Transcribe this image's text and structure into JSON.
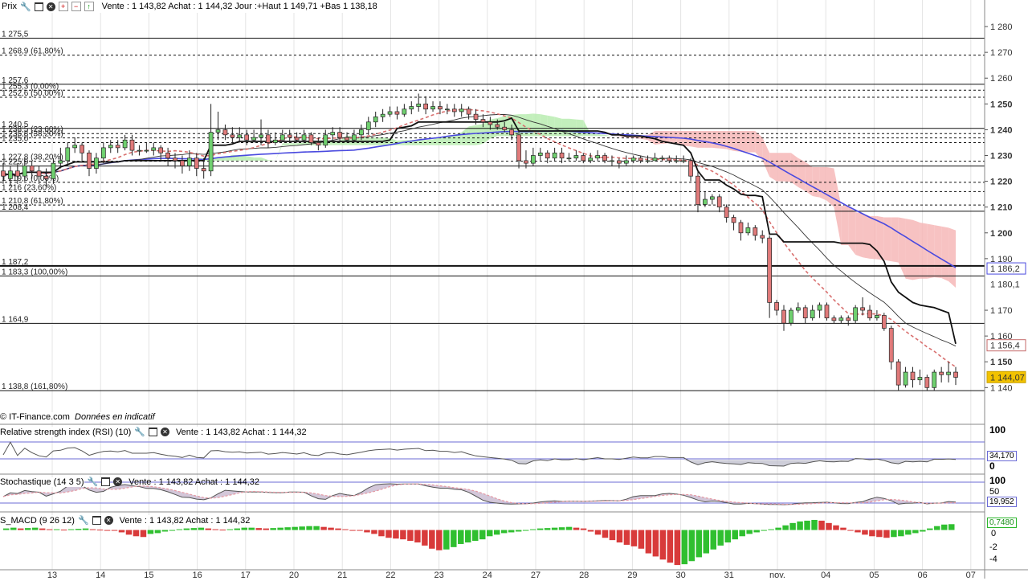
{
  "header": {
    "label": "Prix",
    "quote": "Vente : 1 143,82 Achat : 1 144,32 Jour :+Haut 1 149,71 +Bas 1 138,18"
  },
  "credit": {
    "source": "© IT-Finance.com",
    "note": "Données en indicatif"
  },
  "icons": [
    "wrench-icon",
    "window-icon",
    "close-icon",
    "add-icon",
    "remove-icon",
    "up-icon"
  ],
  "chart_data": {
    "type": "candlestick",
    "price_axis": {
      "ylim": [
        1132,
        1285
      ],
      "ticks": [
        "1 280",
        "1 270",
        "1 260",
        "1 250",
        "1 240",
        "1 230",
        "1 220",
        "1 210",
        "1 200",
        "1 190",
        "1 180,1",
        "1 170",
        "1 160",
        "1 150",
        "1 140"
      ],
      "tick_values": [
        1280,
        1270,
        1260,
        1250,
        1240,
        1230,
        1220,
        1210,
        1200,
        1190,
        1180.1,
        1170,
        1160,
        1150,
        1140
      ],
      "bold_ticks": [
        "1 250",
        "1 240",
        "1 230",
        "1 220",
        "1 210",
        "1 200",
        "1 150"
      ]
    },
    "x_axis": {
      "ticks": [
        "13",
        "14",
        "15",
        "16",
        "17",
        "20",
        "21",
        "22",
        "23",
        "24",
        "27",
        "28",
        "29",
        "30",
        "31",
        "nov.",
        "04",
        "05",
        "06",
        "07"
      ]
    },
    "levels": [
      {
        "label": "1 275,5",
        "value": 1275.5,
        "style": "solid"
      },
      {
        "label": "1 268,9 (61,80%)",
        "value": 1268.9,
        "style": "dashed"
      },
      {
        "label": "1 257,6",
        "value": 1257.6,
        "style": "solid"
      },
      {
        "label": "1 255,3 (0,00%)",
        "value": 1255.3,
        "style": "dashed"
      },
      {
        "label": "1 252,6 (50,00%)",
        "value": 1252.6,
        "style": "dashed"
      },
      {
        "label": "1 240,5",
        "value": 1240.5,
        "style": "solid"
      },
      {
        "label": "1 238,5 (23,60%)",
        "value": 1238.5,
        "style": "dashed"
      },
      {
        "label": "1 236,8 (38,20%)",
        "value": 1236.8,
        "style": "dashed"
      },
      {
        "label": "1 235,0",
        "value": 1235.0,
        "style": "dashed"
      },
      {
        "label": "1 227,8 (38,20%)",
        "value": 1227.8,
        "style": "dashed"
      },
      {
        "label": "1 225,9",
        "value": 1225.9,
        "style": "solid"
      },
      {
        "label": "1 219,6 (0,00%)",
        "value": 1219.6,
        "style": "dashed"
      },
      {
        "label": "1 216 (23,60%)",
        "value": 1216.0,
        "style": "dashed"
      },
      {
        "label": "1 210,8 (61,80%)",
        "value": 1210.8,
        "style": "dashed"
      },
      {
        "label": "1 208,4",
        "value": 1208.4,
        "style": "solid"
      },
      {
        "label": "1 187,2",
        "value": 1187.2,
        "style": "solid-bold"
      },
      {
        "label": "1 183,3 (100,00%)",
        "value": 1183.3,
        "style": "solid"
      },
      {
        "label": "1 164,9",
        "value": 1164.9,
        "style": "solid"
      },
      {
        "label": "1 138,8 (161,80%)",
        "value": 1138.8,
        "style": "solid"
      }
    ],
    "price_tags": [
      {
        "label": "1 186,2",
        "value": 1186.2,
        "bg": "#ffffff",
        "border": "#4a4adf"
      },
      {
        "label": "1 156,4",
        "value": 1156.4,
        "bg": "#ffffff",
        "border": "#c46a6a"
      },
      {
        "label": "1 144,07",
        "value": 1144.07,
        "bg": "#f2c200",
        "border": "#c9a000"
      }
    ],
    "candles": [
      [
        1224,
        1222,
        1227,
        1219
      ],
      [
        1221,
        1224,
        1226,
        1218
      ],
      [
        1224,
        1222,
        1227,
        1219
      ],
      [
        1222,
        1226,
        1229,
        1220
      ],
      [
        1226,
        1224,
        1228,
        1221
      ],
      [
        1224,
        1222,
        1226,
        1219
      ],
      [
        1222,
        1221,
        1225,
        1218
      ],
      [
        1221,
        1227,
        1229,
        1219
      ],
      [
        1227,
        1228,
        1233,
        1225
      ],
      [
        1228,
        1233,
        1235,
        1226
      ],
      [
        1233,
        1234,
        1237,
        1231
      ],
      [
        1234,
        1231,
        1235,
        1228
      ],
      [
        1231,
        1225,
        1232,
        1222
      ],
      [
        1225,
        1229,
        1231,
        1223
      ],
      [
        1229,
        1233,
        1235,
        1227
      ],
      [
        1233,
        1234,
        1236,
        1231
      ],
      [
        1234,
        1233,
        1236,
        1231
      ],
      [
        1233,
        1236,
        1238,
        1232
      ],
      [
        1236,
        1232,
        1238,
        1230
      ],
      [
        1232,
        1232,
        1234,
        1230
      ],
      [
        1232,
        1232,
        1235,
        1231
      ],
      [
        1232,
        1233,
        1235,
        1230
      ],
      [
        1233,
        1231,
        1234,
        1228
      ],
      [
        1231,
        1229,
        1233,
        1226
      ],
      [
        1229,
        1228,
        1231,
        1225
      ],
      [
        1228,
        1226,
        1230,
        1223
      ],
      [
        1226,
        1229,
        1232,
        1224
      ],
      [
        1229,
        1225,
        1231,
        1222
      ],
      [
        1225,
        1224,
        1229,
        1221
      ],
      [
        1224,
        1239,
        1250,
        1222
      ],
      [
        1239,
        1240,
        1247,
        1236
      ],
      [
        1240,
        1238,
        1242,
        1236
      ],
      [
        1238,
        1237,
        1241,
        1235
      ],
      [
        1237,
        1238,
        1241,
        1235
      ],
      [
        1238,
        1236,
        1240,
        1234
      ],
      [
        1236,
        1237,
        1240,
        1235
      ],
      [
        1237,
        1238,
        1244,
        1234
      ],
      [
        1238,
        1235,
        1240,
        1233
      ],
      [
        1235,
        1236,
        1239,
        1234
      ],
      [
        1236,
        1238,
        1240,
        1236
      ],
      [
        1238,
        1237,
        1240,
        1235
      ],
      [
        1237,
        1236,
        1239,
        1235
      ],
      [
        1236,
        1238,
        1240,
        1235
      ],
      [
        1238,
        1235,
        1239,
        1234
      ],
      [
        1235,
        1234,
        1237,
        1232
      ],
      [
        1234,
        1238,
        1240,
        1233
      ],
      [
        1238,
        1239,
        1241,
        1236
      ],
      [
        1239,
        1237,
        1241,
        1235
      ],
      [
        1237,
        1236,
        1239,
        1235
      ],
      [
        1236,
        1238,
        1240,
        1235
      ],
      [
        1238,
        1240,
        1242,
        1236
      ],
      [
        1240,
        1243,
        1245,
        1238
      ],
      [
        1243,
        1245,
        1247,
        1241
      ],
      [
        1245,
        1246,
        1248,
        1243
      ],
      [
        1246,
        1247,
        1249,
        1245
      ],
      [
        1247,
        1246,
        1249,
        1244
      ],
      [
        1246,
        1248,
        1250,
        1245
      ],
      [
        1248,
        1249,
        1251,
        1246
      ],
      [
        1249,
        1250,
        1254,
        1247
      ],
      [
        1250,
        1248,
        1253,
        1246
      ],
      [
        1248,
        1249,
        1251,
        1247
      ],
      [
        1249,
        1248,
        1251,
        1246
      ],
      [
        1248,
        1248,
        1250,
        1246
      ],
      [
        1248,
        1247,
        1250,
        1245
      ],
      [
        1247,
        1248,
        1250,
        1245
      ],
      [
        1248,
        1246,
        1249,
        1244
      ],
      [
        1246,
        1244,
        1248,
        1242
      ],
      [
        1244,
        1243,
        1246,
        1241
      ],
      [
        1243,
        1242,
        1245,
        1240
      ],
      [
        1242,
        1241,
        1244,
        1240
      ],
      [
        1241,
        1240,
        1243,
        1239
      ],
      [
        1240,
        1238,
        1242,
        1236
      ],
      [
        1238,
        1228,
        1240,
        1225
      ],
      [
        1228,
        1227,
        1232,
        1225
      ],
      [
        1227,
        1230,
        1233,
        1226
      ],
      [
        1230,
        1231,
        1233,
        1228
      ],
      [
        1231,
        1229,
        1232,
        1227
      ],
      [
        1229,
        1231,
        1233,
        1228
      ],
      [
        1231,
        1229,
        1233,
        1227
      ],
      [
        1229,
        1229,
        1231,
        1228
      ],
      [
        1229,
        1230,
        1232,
        1228
      ],
      [
        1230,
        1228,
        1231,
        1227
      ],
      [
        1228,
        1229,
        1231,
        1227
      ],
      [
        1229,
        1230,
        1232,
        1228
      ],
      [
        1230,
        1228,
        1231,
        1227
      ],
      [
        1228,
        1228,
        1230,
        1226
      ],
      [
        1228,
        1227,
        1229,
        1225
      ],
      [
        1227,
        1228,
        1230,
        1226
      ],
      [
        1228,
        1229,
        1230,
        1227
      ],
      [
        1229,
        1228,
        1230,
        1227
      ],
      [
        1228,
        1228,
        1230,
        1227
      ],
      [
        1228,
        1229,
        1231,
        1228
      ],
      [
        1229,
        1229,
        1230,
        1228
      ],
      [
        1229,
        1228,
        1230,
        1227
      ],
      [
        1228,
        1228,
        1230,
        1227
      ],
      [
        1228,
        1228,
        1230,
        1227
      ],
      [
        1228,
        1222,
        1229,
        1220
      ],
      [
        1222,
        1211,
        1224,
        1208
      ],
      [
        1211,
        1213,
        1216,
        1210
      ],
      [
        1213,
        1214,
        1215,
        1211
      ],
      [
        1214,
        1210,
        1215,
        1208
      ],
      [
        1210,
        1206,
        1211,
        1204
      ],
      [
        1206,
        1204,
        1207,
        1201
      ],
      [
        1204,
        1200,
        1205,
        1197
      ],
      [
        1200,
        1202,
        1204,
        1199
      ],
      [
        1202,
        1199,
        1203,
        1197
      ],
      [
        1199,
        1198,
        1201,
        1196
      ],
      [
        1198,
        1173,
        1199,
        1167
      ],
      [
        1173,
        1170,
        1174,
        1168
      ],
      [
        1170,
        1165,
        1172,
        1162
      ],
      [
        1165,
        1170,
        1171,
        1164
      ],
      [
        1170,
        1171,
        1173,
        1169
      ],
      [
        1171,
        1167,
        1172,
        1165
      ],
      [
        1167,
        1170,
        1172,
        1166
      ],
      [
        1170,
        1172,
        1173,
        1167
      ],
      [
        1172,
        1167,
        1173,
        1166
      ],
      [
        1167,
        1166,
        1168,
        1165
      ],
      [
        1166,
        1167,
        1168,
        1165
      ],
      [
        1167,
        1166,
        1168,
        1164
      ],
      [
        1166,
        1171,
        1172,
        1165
      ],
      [
        1171,
        1170,
        1175,
        1168
      ],
      [
        1170,
        1167,
        1172,
        1166
      ],
      [
        1167,
        1168,
        1170,
        1166
      ],
      [
        1168,
        1163,
        1169,
        1162
      ],
      [
        1163,
        1150,
        1164,
        1147
      ],
      [
        1150,
        1141,
        1151,
        1139
      ],
      [
        1141,
        1146,
        1148,
        1140
      ],
      [
        1146,
        1143,
        1148,
        1140
      ],
      [
        1143,
        1144,
        1147,
        1141
      ],
      [
        1144,
        1140,
        1145,
        1139
      ],
      [
        1140,
        1146,
        1147,
        1139
      ],
      [
        1146,
        1145,
        1148,
        1142
      ],
      [
        1145,
        1146,
        1150,
        1142
      ],
      [
        1146,
        1144,
        1148,
        1141
      ]
    ],
    "rsi": {
      "title": "Relative strength index (RSI) (10)",
      "quote": "Vente : 1 143,82 Achat : 1 144,32",
      "ticks": [
        "100",
        "0"
      ],
      "value_tag": "34,170",
      "value": 34.17
    },
    "stochastic": {
      "title": "Stochastique (14 3 5)",
      "quote": "Vente : 1 143,82 Achat : 1 144,32",
      "ticks": [
        "100",
        "50"
      ],
      "value_tag": "19,952",
      "value": 19.952
    },
    "macd": {
      "title": "S_MACD (9 26 12)",
      "quote": "Vente : 1 143,82 Achat : 1 144,32",
      "ticks": [
        "0",
        "-2",
        "-4"
      ],
      "value_tag": "0,7480",
      "value": 0.748,
      "ylim": [
        -4.8,
        1.4
      ],
      "bars": [
        0.2,
        0.3,
        0.2,
        0.25,
        0.3,
        0.2,
        0.1,
        0.1,
        0.05,
        0.1,
        0.15,
        0.2,
        0.1,
        0.05,
        0,
        -0.1,
        -0.3,
        -0.6,
        -0.8,
        -0.9,
        -0.5,
        -0.4,
        -0.2,
        -0.1,
        0.1,
        0.2,
        0.25,
        0.3,
        0.2,
        0.1,
        0.05,
        0.1,
        0.2,
        0.3,
        0.3,
        0.25,
        0.2,
        0.25,
        0.3,
        0.35,
        0.4,
        0.45,
        0.5,
        0.5,
        0.4,
        0.3,
        0.2,
        0.1,
        0,
        -0.1,
        -0.3,
        -0.5,
        -0.8,
        -1.0,
        -1.1,
        -1.2,
        -1.4,
        -1.6,
        -2.0,
        -2.4,
        -2.6,
        -2.5,
        -2.2,
        -1.8,
        -1.6,
        -1.4,
        -1.2,
        -0.8,
        -0.6,
        -0.4,
        -0.3,
        -0.2,
        -0.1,
        0.1,
        0.2,
        0.25,
        0.3,
        0.35,
        0.4,
        0.3,
        0.2,
        -0.2,
        -0.6,
        -1.0,
        -1.3,
        -1.6,
        -1.9,
        -2.1,
        -2.4,
        -3.0,
        -3.4,
        -3.8,
        -4.2,
        -4.5,
        -4.4,
        -4.0,
        -3.5,
        -3.0,
        -2.5,
        -2.0,
        -1.6,
        -1.2,
        -0.8,
        -0.5,
        -0.3,
        -0.1,
        0.1,
        0.3,
        0.6,
        0.9,
        1.1,
        1.2,
        1.3,
        1.2,
        0.9,
        0.6,
        0.3,
        0,
        -0.3,
        -0.6,
        -0.8,
        -0.9,
        -1.0,
        -0.9,
        -0.8,
        -0.6,
        -0.4,
        -0.2,
        0.2,
        0.5,
        0.7,
        0.75
      ]
    }
  }
}
